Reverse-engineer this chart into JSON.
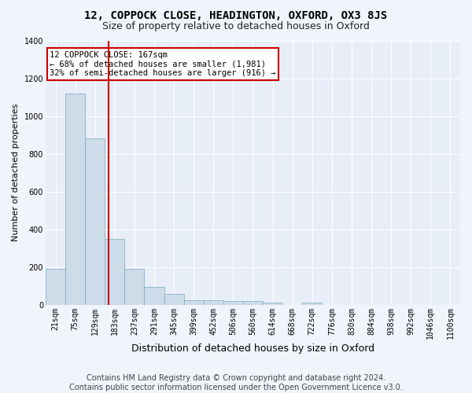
{
  "title1": "12, COPPOCK CLOSE, HEADINGTON, OXFORD, OX3 8JS",
  "title2": "Size of property relative to detached houses in Oxford",
  "xlabel": "Distribution of detached houses by size in Oxford",
  "ylabel": "Number of detached properties",
  "footer": "Contains HM Land Registry data © Crown copyright and database right 2024.\nContains public sector information licensed under the Open Government Licence v3.0.",
  "bin_labels": [
    "21sqm",
    "75sqm",
    "129sqm",
    "183sqm",
    "237sqm",
    "291sqm",
    "345sqm",
    "399sqm",
    "452sqm",
    "506sqm",
    "560sqm",
    "614sqm",
    "668sqm",
    "722sqm",
    "776sqm",
    "830sqm",
    "884sqm",
    "938sqm",
    "992sqm",
    "1046sqm",
    "1100sqm"
  ],
  "bar_heights": [
    190,
    1120,
    880,
    350,
    190,
    95,
    55,
    22,
    22,
    18,
    18,
    12,
    0,
    12,
    0,
    0,
    0,
    0,
    0,
    0,
    0
  ],
  "bar_color": "#ccdce8",
  "bar_edge_color": "#7aaabb",
  "red_line_x": 2.7,
  "annotation_text": "12 COPPOCK CLOSE: 167sqm\n← 68% of detached houses are smaller (1,981)\n32% of semi-detached houses are larger (916) →",
  "annotation_box_color": "#ffffff",
  "annotation_box_edge": "#cc0000",
  "ylim": [
    0,
    1400
  ],
  "background_color": "#e8eef8",
  "fig_background_color": "#f0f4fc",
  "grid_color": "#ffffff",
  "title1_fontsize": 10,
  "title2_fontsize": 9,
  "xlabel_fontsize": 9,
  "ylabel_fontsize": 8,
  "tick_fontsize": 7,
  "footer_fontsize": 7,
  "annot_fontsize": 7.5
}
